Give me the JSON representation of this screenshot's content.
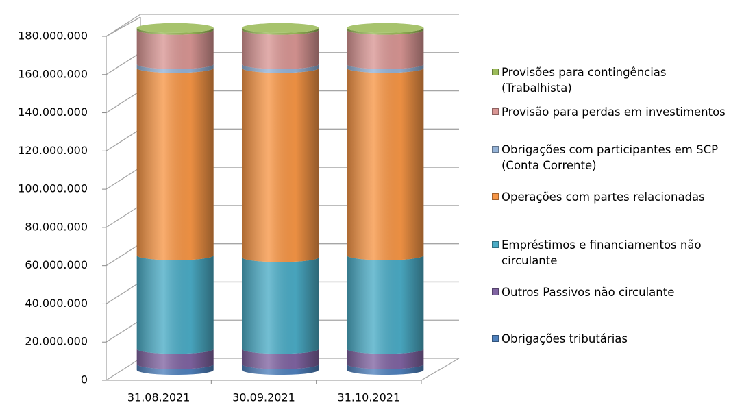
{
  "chart_data": {
    "type": "bar",
    "categories": [
      "31.08.2021",
      "30.09.2021",
      "31.10.2021"
    ],
    "series": [
      {
        "name": "Obrigações tributárias",
        "color": "#4f81bd",
        "values": [
          3000000,
          3000000,
          3000000
        ]
      },
      {
        "name": "Outros Passivos não circulante",
        "color": "#8064a2",
        "values": [
          8000000,
          8000000,
          8000000
        ]
      },
      {
        "name": "Empréstimos e financiamentos não circulante",
        "color": "#4bacc6",
        "values": [
          49000000,
          48000000,
          49000000
        ]
      },
      {
        "name": "Operações com partes relacionadas",
        "color": "#f79646",
        "values": [
          98000000,
          99000000,
          98000000
        ]
      },
      {
        "name": "Obrigações com participantes em SCP (Conta Corrente)",
        "color": "#95b3d7",
        "values": [
          2000000,
          2000000,
          2000000
        ]
      },
      {
        "name": "Provisão para perdas em investimentos",
        "color": "#d99694",
        "values": [
          18000000,
          18000000,
          18000000
        ]
      },
      {
        "name": "Provisões para contingências (Trabalhista)",
        "color": "#9bbb59",
        "values": [
          1000000,
          1000000,
          1000000
        ]
      }
    ],
    "ylim": [
      0,
      180000000
    ],
    "yticks": [
      0,
      {
        "value": 20000000,
        "label": "20.000.000"
      },
      {
        "value": 40000000,
        "label": "40.000.000"
      },
      {
        "value": 60000000,
        "label": "60.000.000"
      },
      {
        "value": 80000000,
        "label": "80.000.000"
      },
      {
        "value": 100000000,
        "label": "100.000.000"
      },
      {
        "value": 120000000,
        "label": "120.000.000"
      },
      {
        "value": 140000000,
        "label": "140.000.000"
      },
      {
        "value": 160000000,
        "label": "160.000.000"
      },
      {
        "value": 180000000,
        "label": "180.000.000"
      }
    ],
    "grid": true,
    "stacked": true,
    "legend": "right"
  }
}
